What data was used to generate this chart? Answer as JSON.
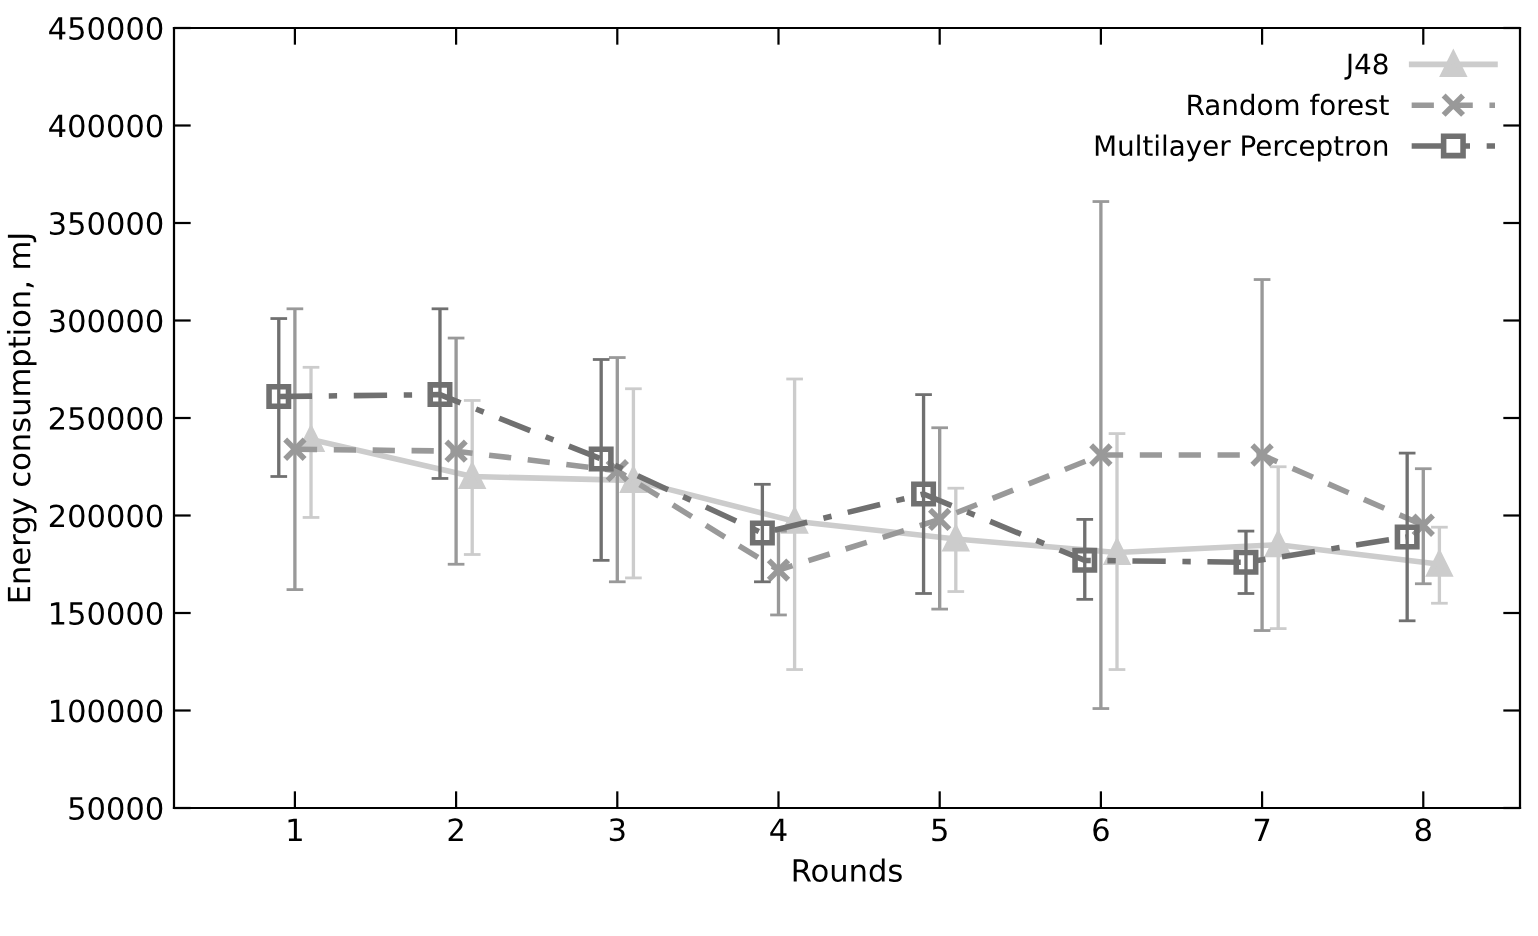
{
  "chart_data": {
    "type": "line",
    "xlabel": "Rounds",
    "ylabel": "Energy consumption, mJ",
    "xlim": [
      0.25,
      8.6
    ],
    "xticks": [
      1,
      2,
      3,
      4,
      5,
      6,
      7,
      8
    ],
    "ylim": [
      50000,
      450000
    ],
    "yticks": [
      50000,
      100000,
      150000,
      200000,
      250000,
      300000,
      350000,
      400000,
      450000
    ],
    "legend": "top right",
    "grid": false,
    "series": [
      {
        "name": "J48",
        "color": "#cccccc",
        "marker": "triangle",
        "line_style": "solid",
        "x": [
          1.1,
          2.1,
          3.1,
          4.1,
          5.1,
          6.1,
          7.1,
          8.1
        ],
        "values": [
          239000,
          220000,
          218000,
          197000,
          188000,
          181000,
          185000,
          175000
        ],
        "errors": [
          [
            199000,
            276000
          ],
          [
            180000,
            259000
          ],
          [
            168000,
            265000
          ],
          [
            121000,
            270000
          ],
          [
            161000,
            214000
          ],
          [
            121000,
            242000
          ],
          [
            142000,
            225000
          ],
          [
            155000,
            194000
          ]
        ]
      },
      {
        "name": "Random forest",
        "color": "#999999",
        "marker": "cross",
        "line_style": "dashed",
        "x": [
          1,
          2,
          3,
          4,
          5,
          6,
          7,
          8
        ],
        "values": [
          234000,
          233000,
          223000,
          172000,
          198000,
          231000,
          231000,
          195000
        ],
        "errors": [
          [
            162000,
            306000
          ],
          [
            175000,
            291000
          ],
          [
            166000,
            281000
          ],
          [
            149000,
            192000
          ],
          [
            152000,
            245000
          ],
          [
            101000,
            361000
          ],
          [
            141000,
            321000
          ],
          [
            165000,
            224000
          ]
        ]
      },
      {
        "name": "Multilayer Perceptron",
        "color": "#707070",
        "marker": "square",
        "line_style": "dashdot",
        "x": [
          0.9,
          1.9,
          2.9,
          3.9,
          4.9,
          5.9,
          6.9,
          7.9
        ],
        "values": [
          261000,
          262000,
          229000,
          191000,
          211000,
          177000,
          176000,
          189000
        ],
        "errors": [
          [
            220000,
            301000
          ],
          [
            219000,
            306000
          ],
          [
            177000,
            280000
          ],
          [
            166000,
            216000
          ],
          [
            160000,
            262000
          ],
          [
            157000,
            198000
          ],
          [
            160000,
            192000
          ],
          [
            146000,
            232000
          ]
        ]
      }
    ]
  }
}
